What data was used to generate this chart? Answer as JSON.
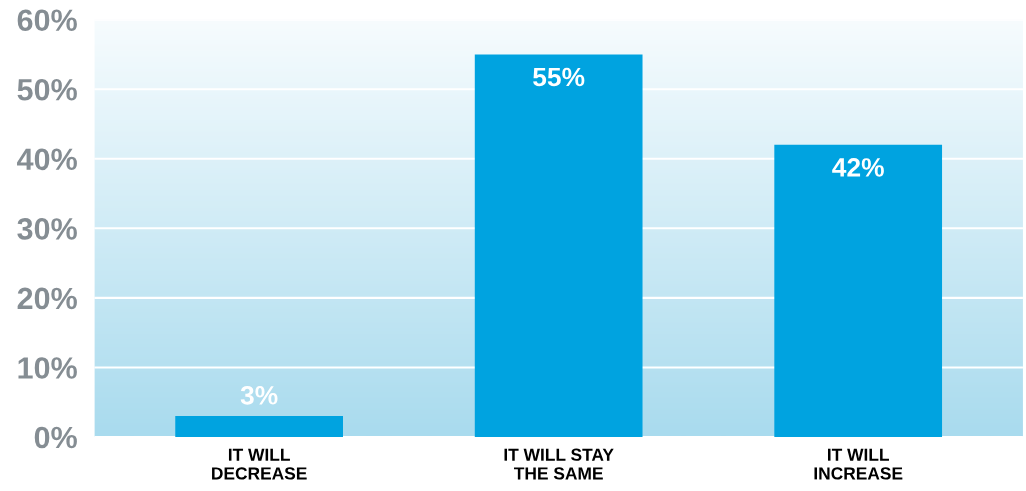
{
  "chart_data": {
    "type": "bar",
    "categories": [
      "IT WILL\nDECREASE",
      "IT WILL STAY\nTHE SAME",
      "IT WILL\nINCREASE"
    ],
    "values": [
      3,
      55,
      42
    ],
    "color": "#00a3e0",
    "value_labels": [
      "3%",
      "55%",
      "42%"
    ],
    "ylim": [
      0,
      60
    ],
    "yticks": [
      {
        "value": 0,
        "label": "0%"
      },
      {
        "value": 10,
        "label": "10%"
      },
      {
        "value": 20,
        "label": "20%"
      },
      {
        "value": 30,
        "label": "30%"
      },
      {
        "value": 40,
        "label": "40%"
      },
      {
        "value": 50,
        "label": "50%"
      },
      {
        "value": 60,
        "label": "60%"
      }
    ],
    "grid": "y"
  }
}
